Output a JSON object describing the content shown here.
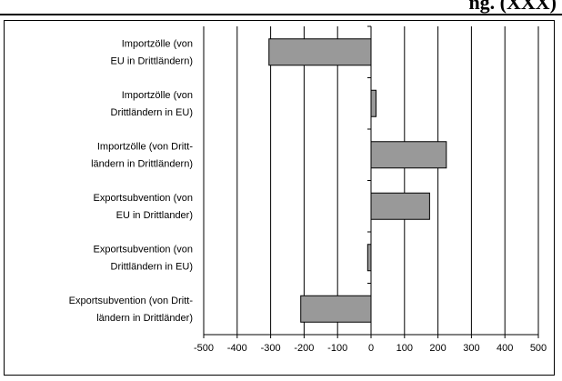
{
  "title_fragment": "ng. (XXX)",
  "chart_data": {
    "type": "bar",
    "orientation": "horizontal",
    "categories": [
      [
        "Importzölle (von",
        "EU in Drittländern)"
      ],
      [
        "Importzölle (von",
        "Drittländern in EU)"
      ],
      [
        "Importzölle (von Dritt-",
        "ländern in Drittländern)"
      ],
      [
        "Exportsubvention (von",
        "EU in Drittlander)"
      ],
      [
        "Exportsubvention (von",
        "Drittländern in EU)"
      ],
      [
        "Exportsubvention  (von Dritt-",
        "ländern in Drittländer)"
      ]
    ],
    "values": [
      -305,
      15,
      225,
      175,
      -10,
      -210
    ],
    "xlim": [
      -500,
      500
    ],
    "xticks": [
      -500,
      -400,
      -300,
      -200,
      -100,
      0,
      100,
      200,
      300,
      400,
      500
    ],
    "grid": true,
    "legend": false,
    "bar_color": "#999999",
    "bar_stroke": "#000000",
    "grid_color": "#000000"
  }
}
